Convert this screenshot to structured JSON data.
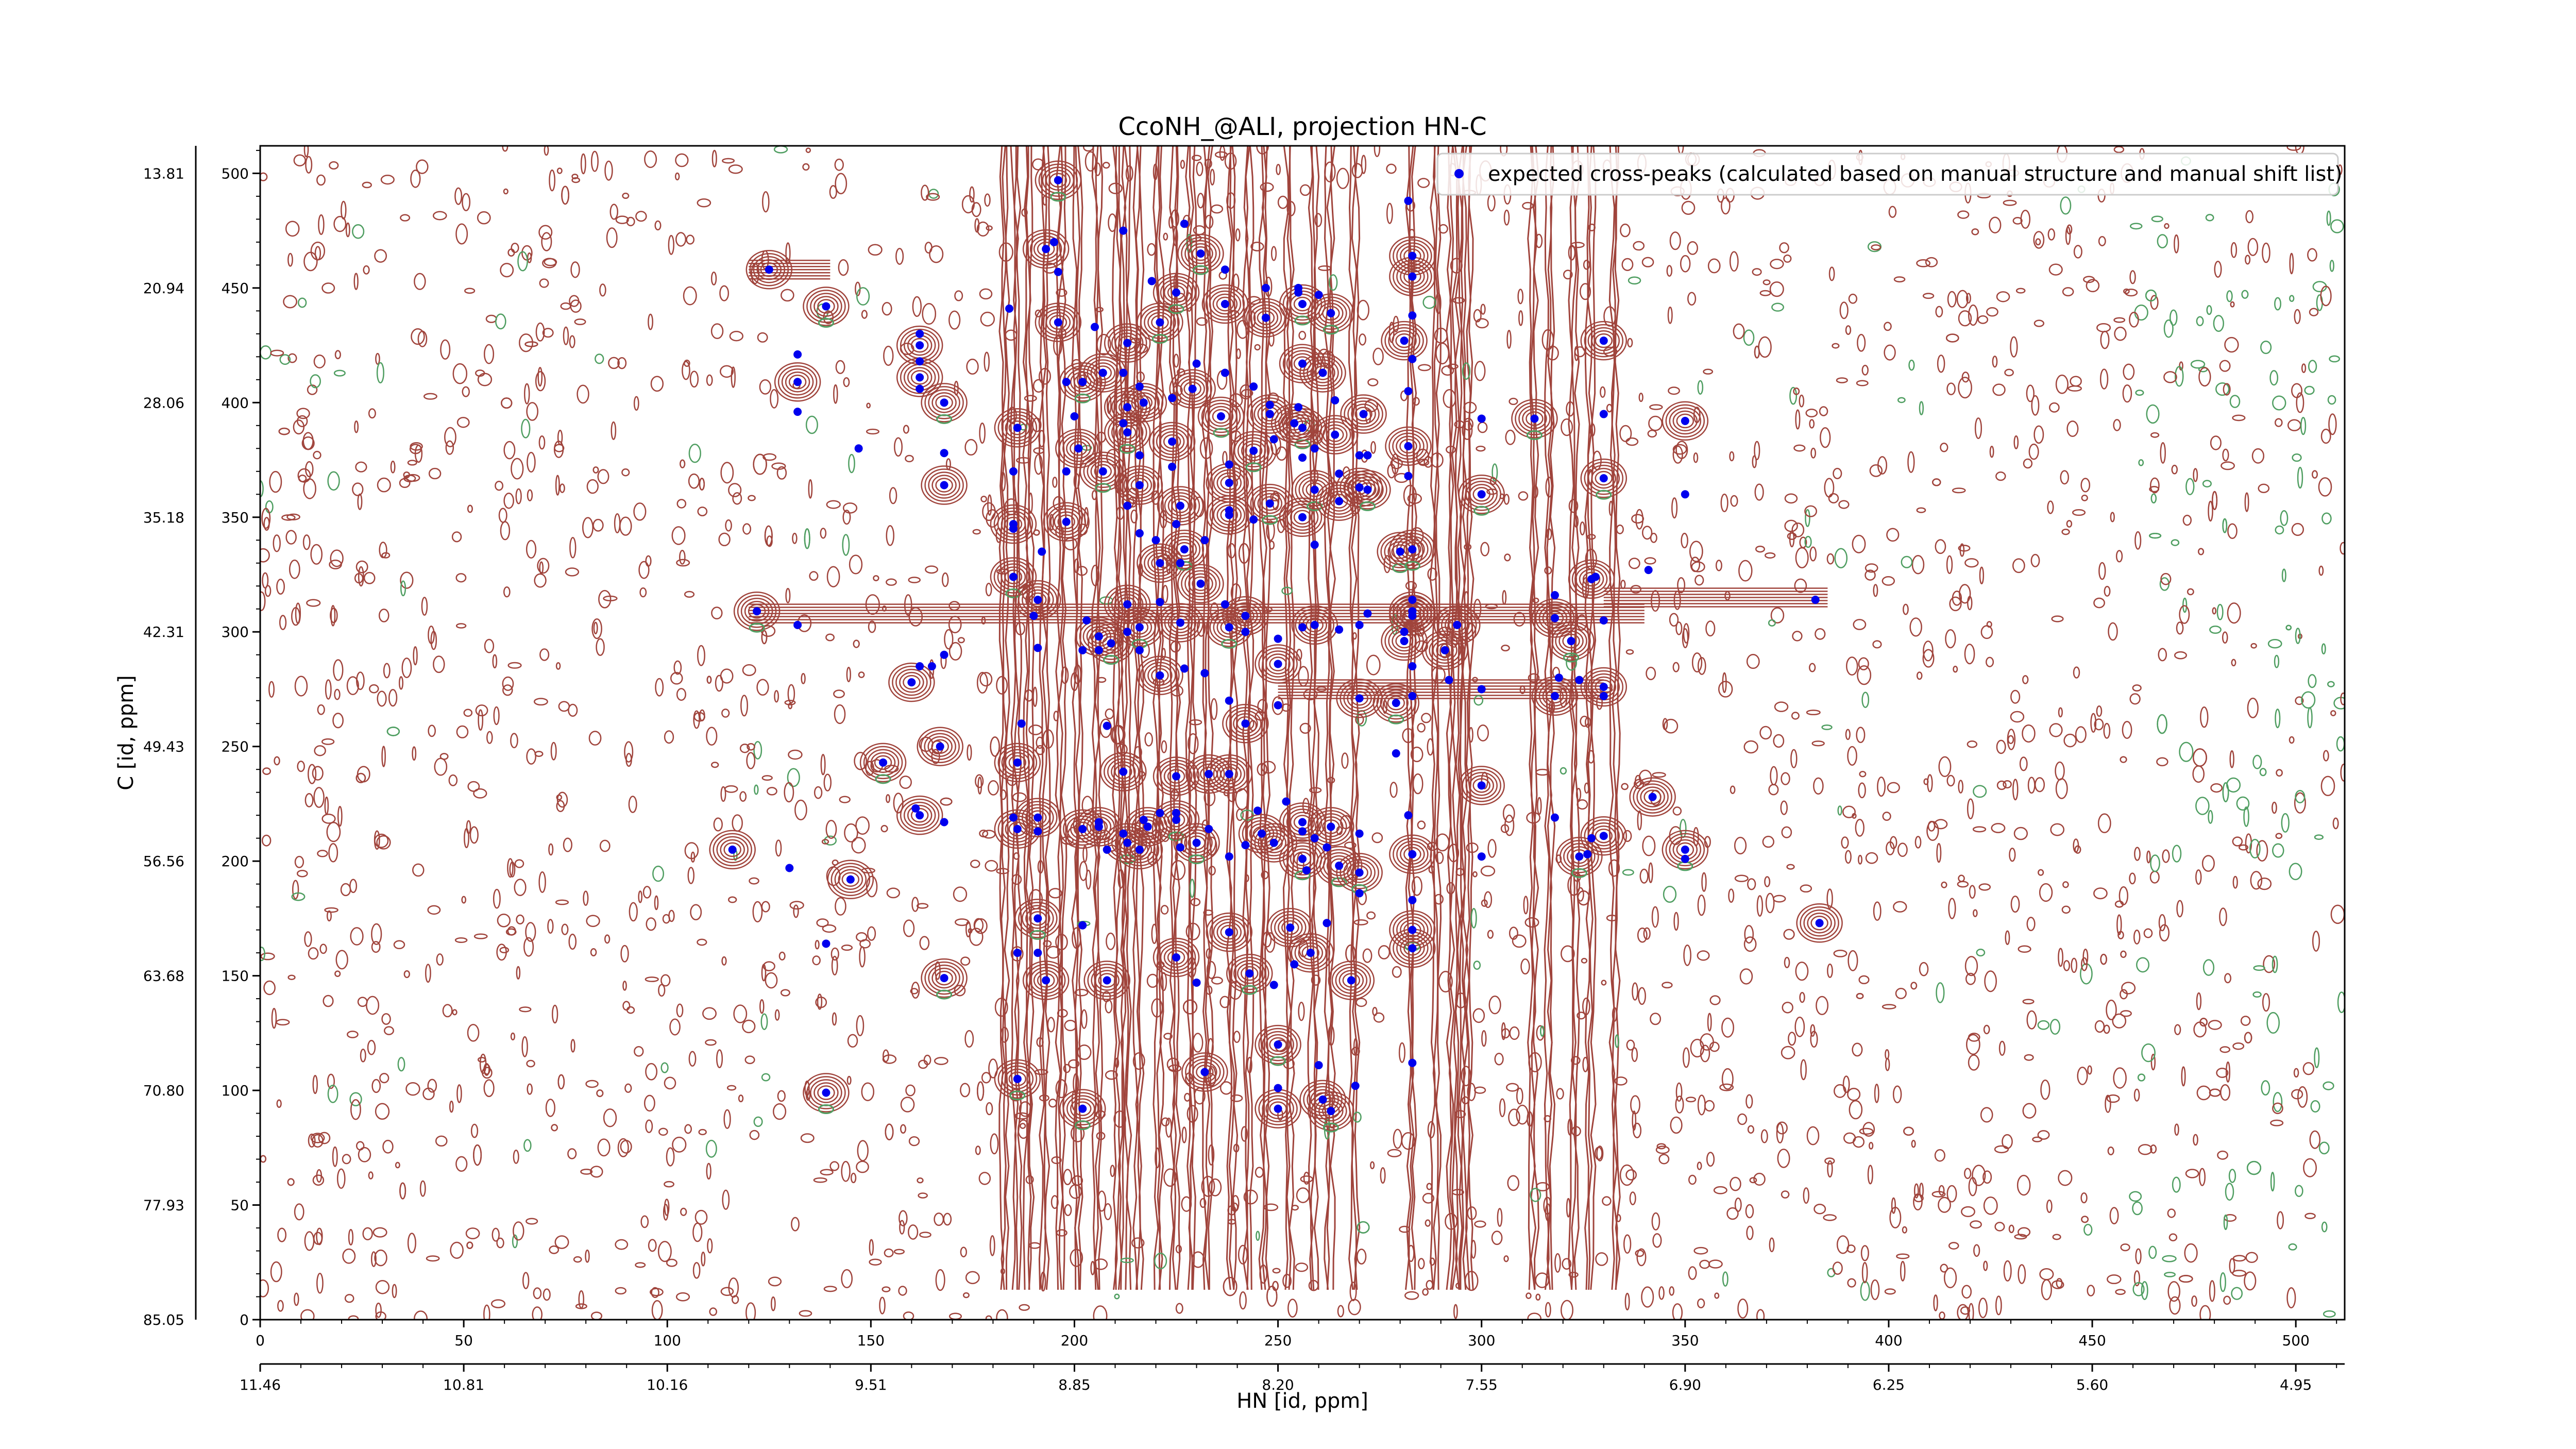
{
  "chart_data": {
    "type": "scatter",
    "title": "CcoNH_@ALI, projection HN-C",
    "xlabel": "HN [id, ppm]",
    "ylabel": "C [id, ppm]",
    "xlim": [
      0,
      512
    ],
    "ylim": [
      0,
      512
    ],
    "x_ticks_index": [
      "0",
      "50",
      "100",
      "150",
      "200",
      "250",
      "300",
      "350",
      "400",
      "450",
      "500"
    ],
    "x_ticks_ppm": [
      "11.46",
      "10.81",
      "10.16",
      "9.51",
      "8.85",
      "8.20",
      "7.55",
      "6.90",
      "6.25",
      "5.60",
      "4.95"
    ],
    "y_ticks_index": [
      "0",
      "50",
      "100",
      "150",
      "200",
      "250",
      "300",
      "350",
      "400",
      "450",
      "500"
    ],
    "y_ticks_ppm": [
      "85.05",
      "77.93",
      "70.80",
      "63.68",
      "56.56",
      "49.43",
      "42.31",
      "35.18",
      "28.06",
      "20.94",
      "13.81"
    ],
    "grid": false,
    "legend_position": "top-right",
    "contour_colors": {
      "positive": "#a0443c",
      "negative": "#4f9e61"
    },
    "marker_color": "#0000ee",
    "series": [
      {
        "name": "expected cross-peaks (calculated based on manual structure and manual shift list)",
        "points": [
          [
            122,
            309
          ],
          [
            132,
            303
          ],
          [
            125,
            458
          ],
          [
            132,
            421
          ],
          [
            132,
            409
          ],
          [
            132,
            396
          ],
          [
            139,
            442
          ],
          [
            147,
            380
          ],
          [
            145,
            192
          ],
          [
            130,
            197
          ],
          [
            116,
            205
          ],
          [
            139,
            164
          ],
          [
            139,
            99
          ],
          [
            162,
            430
          ],
          [
            162,
            425
          ],
          [
            162,
            418
          ],
          [
            162,
            411
          ],
          [
            162,
            406
          ],
          [
            168,
            400
          ],
          [
            168,
            378
          ],
          [
            168,
            364
          ],
          [
            168,
            290
          ],
          [
            167,
            250
          ],
          [
            168,
            217
          ],
          [
            168,
            149
          ],
          [
            165,
            285
          ],
          [
            160,
            278
          ],
          [
            162,
            285
          ],
          [
            162,
            220
          ],
          [
            161,
            223
          ],
          [
            153,
            243
          ],
          [
            184,
            441
          ],
          [
            186,
            389
          ],
          [
            185,
            370
          ],
          [
            185,
            347
          ],
          [
            185,
            345
          ],
          [
            185,
            324
          ],
          [
            187,
            260
          ],
          [
            186,
            243
          ],
          [
            185,
            219
          ],
          [
            186,
            214
          ],
          [
            186,
            160
          ],
          [
            186,
            105
          ],
          [
            190,
            307
          ],
          [
            191,
            314
          ],
          [
            191,
            293
          ],
          [
            191,
            219
          ],
          [
            191,
            213
          ],
          [
            191,
            175
          ],
          [
            191,
            160
          ],
          [
            193,
            148
          ],
          [
            192,
            335
          ],
          [
            193,
            467
          ],
          [
            195,
            470
          ],
          [
            196,
            497
          ],
          [
            196,
            457
          ],
          [
            196,
            435
          ],
          [
            198,
            370
          ],
          [
            198,
            348
          ],
          [
            198,
            409
          ],
          [
            202,
            409
          ],
          [
            200,
            394
          ],
          [
            201,
            380
          ],
          [
            202,
            292
          ],
          [
            202,
            214
          ],
          [
            202,
            172
          ],
          [
            202,
            92
          ],
          [
            205,
            433
          ],
          [
            207,
            413
          ],
          [
            203,
            305
          ],
          [
            206,
            298
          ],
          [
            206,
            292
          ],
          [
            207,
            370
          ],
          [
            206,
            217
          ],
          [
            206,
            215
          ],
          [
            208,
            205
          ],
          [
            208,
            148
          ],
          [
            208,
            259
          ],
          [
            209,
            295
          ],
          [
            212,
            475
          ],
          [
            213,
            426
          ],
          [
            212,
            413
          ],
          [
            213,
            398
          ],
          [
            212,
            391
          ],
          [
            213,
            387
          ],
          [
            213,
            355
          ],
          [
            213,
            312
          ],
          [
            213,
            300
          ],
          [
            212,
            239
          ],
          [
            212,
            212
          ],
          [
            213,
            208
          ],
          [
            216,
            407
          ],
          [
            217,
            400
          ],
          [
            216,
            377
          ],
          [
            216,
            364
          ],
          [
            216,
            343
          ],
          [
            216,
            302
          ],
          [
            216,
            292
          ],
          [
            216,
            205
          ],
          [
            217,
            218
          ],
          [
            218,
            215
          ],
          [
            219,
            453
          ],
          [
            221,
            435
          ],
          [
            220,
            340
          ],
          [
            221,
            330
          ],
          [
            221,
            313
          ],
          [
            221,
            281
          ],
          [
            221,
            221
          ],
          [
            225,
            448
          ],
          [
            224,
            402
          ],
          [
            224,
            383
          ],
          [
            224,
            372
          ],
          [
            226,
            355
          ],
          [
            225,
            347
          ],
          [
            227,
            336
          ],
          [
            226,
            330
          ],
          [
            226,
            304
          ],
          [
            227,
            284
          ],
          [
            225,
            237
          ],
          [
            225,
            221
          ],
          [
            225,
            218
          ],
          [
            226,
            206
          ],
          [
            225,
            158
          ],
          [
            230,
            417
          ],
          [
            229,
            406
          ],
          [
            227,
            478
          ],
          [
            231,
            465
          ],
          [
            232,
            340
          ],
          [
            231,
            321
          ],
          [
            232,
            282
          ],
          [
            233,
            238
          ],
          [
            233,
            214
          ],
          [
            230,
            208
          ],
          [
            230,
            147
          ],
          [
            232,
            108
          ],
          [
            237,
            458
          ],
          [
            237,
            443
          ],
          [
            237,
            413
          ],
          [
            236,
            394
          ],
          [
            238,
            373
          ],
          [
            238,
            365
          ],
          [
            238,
            353
          ],
          [
            238,
            351
          ],
          [
            237,
            312
          ],
          [
            238,
            302
          ],
          [
            238,
            270
          ],
          [
            238,
            238
          ],
          [
            238,
            202
          ],
          [
            238,
            169
          ],
          [
            244,
            407
          ],
          [
            244,
            379
          ],
          [
            244,
            349
          ],
          [
            242,
            307
          ],
          [
            242,
            300
          ],
          [
            242,
            260
          ],
          [
            242,
            207
          ],
          [
            243,
            151
          ],
          [
            247,
            450
          ],
          [
            247,
            437
          ],
          [
            248,
            399
          ],
          [
            248,
            395
          ],
          [
            249,
            384
          ],
          [
            248,
            356
          ],
          [
            250,
            297
          ],
          [
            250,
            286
          ],
          [
            250,
            268
          ],
          [
            249,
            208
          ],
          [
            249,
            146
          ],
          [
            250,
            120
          ],
          [
            250,
            101
          ],
          [
            250,
            92
          ],
          [
            255,
            448
          ],
          [
            256,
            417
          ],
          [
            255,
            398
          ],
          [
            256,
            389
          ],
          [
            256,
            376
          ],
          [
            256,
            350
          ],
          [
            256,
            302
          ],
          [
            256,
            217
          ],
          [
            256,
            213
          ],
          [
            256,
            201
          ],
          [
            254,
            155
          ],
          [
            253,
            171
          ],
          [
            260,
            447
          ],
          [
            261,
            413
          ],
          [
            259,
            380
          ],
          [
            259,
            362
          ],
          [
            259,
            338
          ],
          [
            259,
            303
          ],
          [
            259,
            210
          ],
          [
            258,
            160
          ],
          [
            257,
            196
          ],
          [
            256,
            443
          ],
          [
            255,
            450
          ],
          [
            254,
            391
          ],
          [
            252,
            226
          ],
          [
            246,
            212
          ],
          [
            245,
            222
          ],
          [
            263,
            439
          ],
          [
            264,
            401
          ],
          [
            264,
            386
          ],
          [
            265,
            369
          ],
          [
            265,
            357
          ],
          [
            265,
            301
          ],
          [
            265,
            198
          ],
          [
            262,
            173
          ],
          [
            261,
            96
          ],
          [
            260,
            111
          ],
          [
            263,
            215
          ],
          [
            262,
            206
          ],
          [
            263,
            91
          ],
          [
            270,
            377
          ],
          [
            270,
            363
          ],
          [
            270,
            303
          ],
          [
            270,
            271
          ],
          [
            270,
            212
          ],
          [
            270,
            195
          ],
          [
            270,
            186
          ],
          [
            268,
            148
          ],
          [
            269,
            102
          ],
          [
            271,
            395
          ],
          [
            272,
            377
          ],
          [
            272,
            362
          ],
          [
            272,
            308
          ],
          [
            281,
            427
          ],
          [
            282,
            405
          ],
          [
            282,
            381
          ],
          [
            282,
            368
          ],
          [
            280,
            335
          ],
          [
            281,
            300
          ],
          [
            281,
            296
          ],
          [
            282,
            220
          ],
          [
            283,
            203
          ],
          [
            283,
            183
          ],
          [
            283,
            170
          ],
          [
            283,
            112
          ],
          [
            283,
            162
          ],
          [
            283,
            272
          ],
          [
            283,
            309
          ],
          [
            279,
            247
          ],
          [
            279,
            269
          ],
          [
            283,
            285
          ],
          [
            283,
            307
          ],
          [
            282,
            488
          ],
          [
            283,
            464
          ],
          [
            283,
            438
          ],
          [
            283,
            336
          ],
          [
            283,
            314
          ],
          [
            291,
            292
          ],
          [
            292,
            279
          ],
          [
            294,
            303
          ],
          [
            300,
            393
          ],
          [
            300,
            360
          ],
          [
            300,
            275
          ],
          [
            300,
            233
          ],
          [
            300,
            202
          ],
          [
            283,
            455
          ],
          [
            283,
            419
          ],
          [
            313,
            393
          ],
          [
            318,
            316
          ],
          [
            318,
            306
          ],
          [
            318,
            219
          ],
          [
            318,
            272
          ],
          [
            319,
            280
          ],
          [
            322,
            296
          ],
          [
            324,
            279
          ],
          [
            327,
            323
          ],
          [
            328,
            324
          ],
          [
            330,
            427
          ],
          [
            330,
            395
          ],
          [
            330,
            367
          ],
          [
            330,
            305
          ],
          [
            330,
            276
          ],
          [
            330,
            272
          ],
          [
            330,
            211
          ],
          [
            327,
            210
          ],
          [
            324,
            202
          ],
          [
            326,
            203
          ],
          [
            342,
            228
          ],
          [
            341,
            327
          ],
          [
            350,
            392
          ],
          [
            350,
            360
          ],
          [
            350,
            205
          ],
          [
            350,
            201
          ],
          [
            383,
            173
          ],
          [
            382,
            314
          ]
        ]
      }
    ]
  }
}
